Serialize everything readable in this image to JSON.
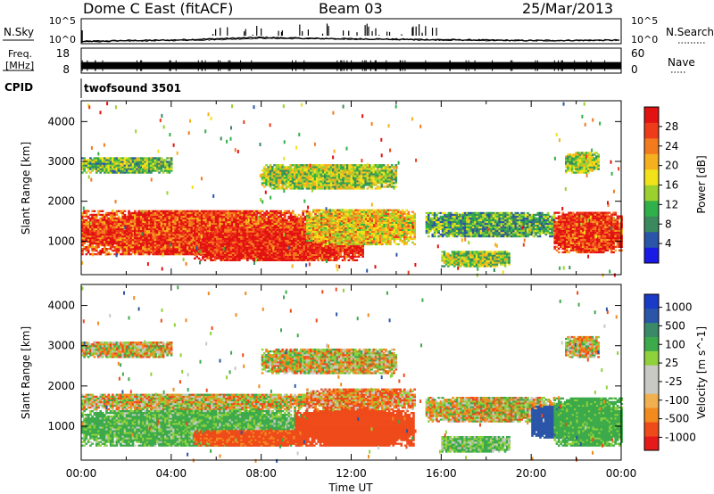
{
  "header": {
    "station": "Dome C East (fitACF)",
    "beam": "Beam 03",
    "date": "25/Mar/2013"
  },
  "noise_panel": {
    "left_label": "N.Sky",
    "left_ticks": [
      "10^5",
      "10^0"
    ],
    "right_label": "N.Search",
    "right_ticks": [
      "10^5",
      "10^0"
    ]
  },
  "freq_panel": {
    "left_label_lines": [
      "Freq.",
      "[MHz]"
    ],
    "left_ticks": [
      "18",
      "8"
    ],
    "right_label": "Nave",
    "right_ticks": [
      "60",
      "0"
    ]
  },
  "cpid_panel": {
    "label": "CPID",
    "program": "twofsound 3501"
  },
  "x_axis": {
    "label": "Time UT",
    "ticks": [
      "00:00",
      "04:00",
      "08:00",
      "12:00",
      "16:00",
      "20:00",
      "00:00"
    ]
  },
  "colors": {
    "power_scale": [
      "#1a1ae6",
      "#2a55a8",
      "#3a8a5e",
      "#2fb04a",
      "#9ad12e",
      "#f2e21a",
      "#f5b01e",
      "#f47a1e",
      "#ee3b1a",
      "#e21212"
    ],
    "velocity_scale": [
      "#e61a1a",
      "#ef4a1a",
      "#f28a1e",
      "#f0b050",
      "#c8c8c4",
      "#c8c8c4",
      "#8fd13a",
      "#3caa4a",
      "#3a8a6a",
      "#2a55a8",
      "#1a3ac8"
    ]
  },
  "chart_data": [
    {
      "type": "line",
      "name": "noise",
      "series": [
        {
          "name": "N.Sky",
          "axis": "log10 left",
          "values_log10": [
            0.3,
            0.5,
            0.6,
            0.9,
            1.2,
            1.0,
            0.9,
            0.8,
            0.7,
            0.6,
            0.5,
            0.55
          ]
        },
        {
          "name": "N.Search",
          "axis": "log10 right",
          "values_log10": [
            0.2,
            0.4,
            0.5,
            0.7,
            1.0,
            0.9,
            0.8,
            0.7,
            0.6,
            0.5,
            0.45,
            0.5
          ]
        }
      ],
      "x_hours": [
        0,
        2,
        4,
        6,
        8,
        10,
        12,
        14,
        16,
        18,
        20,
        22
      ],
      "ylim_log10": [
        0,
        5
      ]
    },
    {
      "type": "line",
      "name": "frequency",
      "series": [
        {
          "name": "Freq.",
          "units": "MHz",
          "values": [
            11,
            11,
            11,
            11,
            11,
            11,
            11,
            11,
            11,
            11,
            11,
            11
          ]
        }
      ],
      "x_hours": [
        0,
        2,
        4,
        6,
        8,
        10,
        12,
        14,
        16,
        18,
        20,
        22
      ],
      "ylim": [
        8,
        18
      ],
      "y2lim": [
        0,
        60
      ]
    },
    {
      "type": "heatmap",
      "name": "power",
      "xlabel": "Time UT",
      "ylabel": "Slant Range [km]",
      "xlim_hours": [
        0,
        24
      ],
      "ylim_km": [
        180,
        4500
      ],
      "y_ticks": [
        1000,
        2000,
        3000,
        4000
      ],
      "colorbar": {
        "label": "Power [dB]",
        "ticks": [
          "4",
          "8",
          "12",
          "16",
          "20",
          "24",
          "28"
        ],
        "range": [
          0,
          30
        ]
      },
      "bands": [
        {
          "t0": 0,
          "t1": 10,
          "r0": 650,
          "r1": 1750,
          "value": 26
        },
        {
          "t0": 5,
          "t1": 12.5,
          "r0": 500,
          "r1": 1300,
          "value": 28
        },
        {
          "t0": 10,
          "t1": 14.8,
          "r0": 900,
          "r1": 1800,
          "value": 18
        },
        {
          "t0": 0,
          "t1": 4,
          "r0": 2700,
          "r1": 3100,
          "value": 12
        },
        {
          "t0": 8,
          "t1": 14,
          "r0": 2300,
          "r1": 2900,
          "value": 14
        },
        {
          "t0": 15.3,
          "t1": 21,
          "r0": 1100,
          "r1": 1700,
          "value": 10
        },
        {
          "t0": 16,
          "t1": 19,
          "r0": 350,
          "r1": 750,
          "value": 14
        },
        {
          "t0": 21,
          "t1": 24,
          "r0": 700,
          "r1": 1700,
          "value": 27
        },
        {
          "t0": 21.5,
          "t1": 23,
          "r0": 2700,
          "r1": 3200,
          "value": 14
        }
      ]
    },
    {
      "type": "heatmap",
      "name": "velocity",
      "xlabel": "Time UT",
      "ylabel": "Slant Range [km]",
      "xlim_hours": [
        0,
        24
      ],
      "ylim_km": [
        180,
        4500
      ],
      "y_ticks": [
        1000,
        2000,
        3000,
        4000
      ],
      "colorbar": {
        "label": "Velocity [m s^-1]",
        "ticks": [
          "1000",
          "500",
          "100",
          "25",
          "-25",
          "-100",
          "-500",
          "-1000"
        ],
        "range": [
          -1000,
          1000
        ]
      },
      "bands": [
        {
          "t0": 0,
          "t1": 10,
          "r0": 1400,
          "r1": 1800,
          "value": 0
        },
        {
          "t0": 0,
          "t1": 10,
          "r0": 500,
          "r1": 1400,
          "value": 150
        },
        {
          "t0": 5,
          "t1": 10,
          "r0": 500,
          "r1": 900,
          "value": -200
        },
        {
          "t0": 9.5,
          "t1": 14.8,
          "r0": 500,
          "r1": 1400,
          "value": -300
        },
        {
          "t0": 10,
          "t1": 14.8,
          "r0": 1400,
          "r1": 1900,
          "value": -80
        },
        {
          "t0": 0,
          "t1": 4,
          "r0": 2700,
          "r1": 3100,
          "value": 0
        },
        {
          "t0": 8,
          "t1": 14,
          "r0": 2300,
          "r1": 2900,
          "value": 0
        },
        {
          "t0": 15.3,
          "t1": 21,
          "r0": 1100,
          "r1": 1700,
          "value": 0
        },
        {
          "t0": 16,
          "t1": 19,
          "r0": 350,
          "r1": 750,
          "value": 120
        },
        {
          "t0": 20,
          "t1": 22,
          "r0": 700,
          "r1": 1500,
          "value": 700
        },
        {
          "t0": 21,
          "t1": 24,
          "r0": 500,
          "r1": 1700,
          "value": 200
        },
        {
          "t0": 21.5,
          "t1": 23,
          "r0": 2700,
          "r1": 3200,
          "value": 0
        }
      ]
    }
  ]
}
